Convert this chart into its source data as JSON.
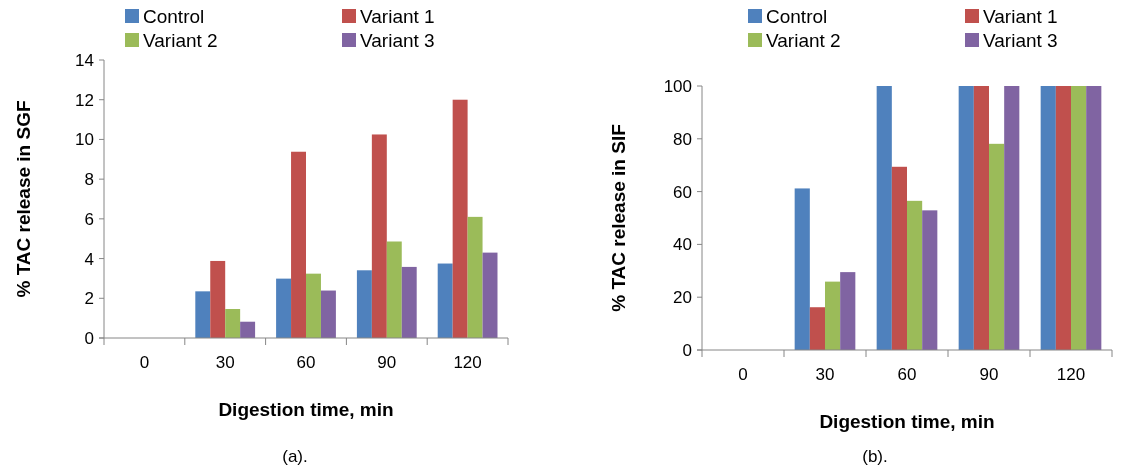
{
  "chart_data": [
    {
      "type": "bar",
      "xlabel": "Digestion time, min",
      "ylabel": "% TAC release in SGF",
      "categories": [
        "0",
        "30",
        "60",
        "90",
        "120"
      ],
      "series": [
        {
          "name": "Control",
          "color": "#4f81bd",
          "values": [
            0,
            2.35,
            2.99,
            3.41,
            3.75
          ]
        },
        {
          "name": "Variant 1",
          "color": "#c0504d",
          "values": [
            0,
            3.88,
            9.38,
            10.25,
            12.0
          ]
        },
        {
          "name": "Variant 2",
          "color": "#9bbb59",
          "values": [
            0,
            1.46,
            3.24,
            4.86,
            6.1
          ]
        },
        {
          "name": "Variant 3",
          "color": "#8064a2",
          "values": [
            0,
            0.82,
            2.39,
            3.58,
            4.3
          ]
        }
      ],
      "ylim": [
        0,
        14
      ],
      "yticks": [
        0,
        2,
        4,
        6,
        8,
        10,
        12,
        14
      ],
      "grid": false,
      "legend": "top",
      "annotations": [
        "(a)."
      ]
    },
    {
      "type": "bar",
      "xlabel": "Digestion time, min",
      "ylabel": "% TAC release in SIF",
      "categories": [
        "0",
        "30",
        "60",
        "90",
        "120"
      ],
      "series": [
        {
          "name": "Control",
          "color": "#4f81bd",
          "values": [
            0,
            61.2,
            100,
            100,
            100
          ]
        },
        {
          "name": "Variant 1",
          "color": "#c0504d",
          "values": [
            0,
            16.2,
            69.4,
            100,
            100
          ]
        },
        {
          "name": "Variant 2",
          "color": "#9bbb59",
          "values": [
            0,
            25.9,
            56.5,
            78.1,
            100
          ]
        },
        {
          "name": "Variant 3",
          "color": "#8064a2",
          "values": [
            0,
            29.5,
            52.9,
            100,
            100
          ]
        }
      ],
      "ylim": [
        0,
        100
      ],
      "yticks": [
        0,
        20,
        40,
        60,
        80,
        100
      ],
      "grid": false,
      "legend": "top",
      "annotations": [
        "(b)."
      ]
    }
  ]
}
